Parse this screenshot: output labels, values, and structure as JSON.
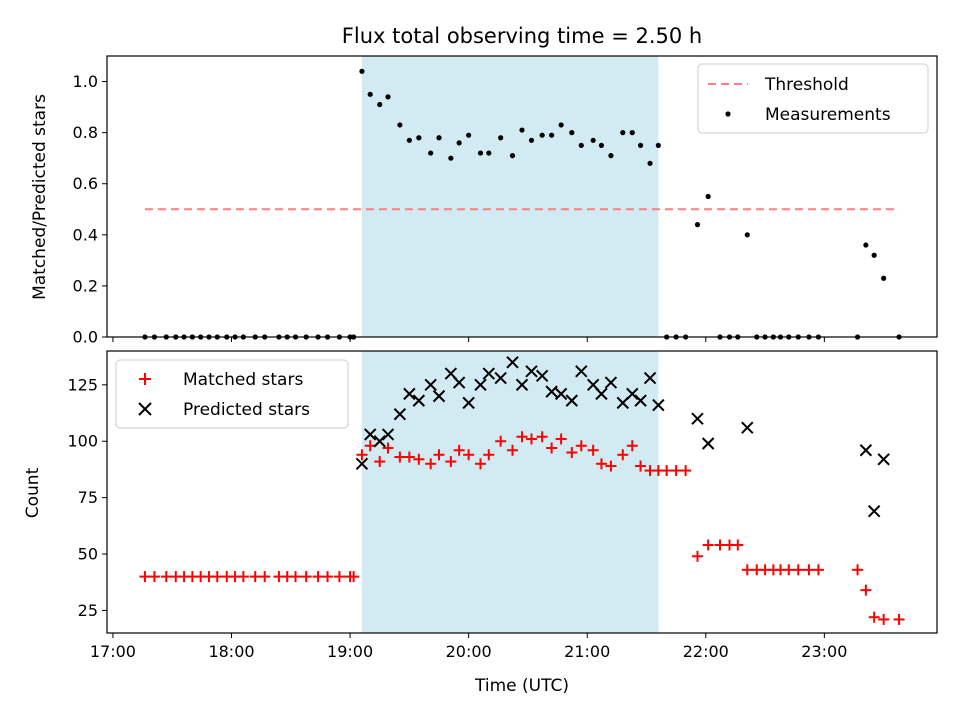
{
  "chart_data": [
    {
      "type": "scatter",
      "title": "Flux total observing time = 2.50 h",
      "xlabel": "",
      "ylabel": "Matched/Predicted stars",
      "xlim": [
        16.95,
        23.95
      ],
      "ylim": [
        0,
        1.1
      ],
      "yticks": [
        "0.0",
        "0.2",
        "0.4",
        "0.6",
        "0.8",
        "1.0"
      ],
      "ytick_values": [
        0,
        0.2,
        0.4,
        0.6,
        0.8,
        1.0
      ],
      "shaded_region": {
        "x_start": 19.1,
        "x_end": 21.6,
        "color": "#add8e6"
      },
      "legend_position": "top-right",
      "series": [
        {
          "name": "Threshold",
          "kind": "dashed-line",
          "color": "#ff7f7f",
          "x": [
            17.27,
            23.63
          ],
          "y": [
            0.5,
            0.5
          ]
        },
        {
          "name": "Measurements",
          "kind": "dot",
          "color": "#000000",
          "x": [
            17.27,
            17.35,
            17.45,
            17.53,
            17.6,
            17.67,
            17.74,
            17.81,
            17.88,
            17.96,
            18.03,
            18.1,
            18.2,
            18.28,
            18.4,
            18.47,
            18.54,
            18.63,
            18.73,
            18.81,
            18.91,
            19.0,
            19.03,
            19.1,
            19.17,
            19.25,
            19.32,
            19.42,
            19.5,
            19.58,
            19.68,
            19.75,
            19.85,
            19.92,
            20.0,
            20.1,
            20.17,
            20.27,
            20.37,
            20.45,
            20.53,
            20.62,
            20.7,
            20.78,
            20.87,
            20.95,
            21.05,
            21.12,
            21.2,
            21.3,
            21.38,
            21.45,
            21.53,
            21.6,
            21.67,
            21.75,
            21.83,
            21.93,
            22.02,
            22.12,
            22.2,
            22.27,
            22.35,
            22.43,
            22.5,
            22.57,
            22.63,
            22.7,
            22.78,
            22.87,
            22.95,
            23.28,
            23.35,
            23.42,
            23.5,
            23.63
          ],
          "y": [
            0,
            0,
            0,
            0,
            0,
            0,
            0,
            0,
            0,
            0,
            0,
            0,
            0,
            0,
            0,
            0,
            0,
            0,
            0,
            0,
            0,
            0,
            0,
            1.04,
            0.95,
            0.91,
            0.94,
            0.83,
            0.77,
            0.78,
            0.72,
            0.78,
            0.7,
            0.76,
            0.79,
            0.72,
            0.72,
            0.78,
            0.71,
            0.81,
            0.77,
            0.79,
            0.79,
            0.83,
            0.8,
            0.75,
            0.77,
            0.75,
            0.71,
            0.8,
            0.8,
            0.75,
            0.68,
            0.75,
            0,
            0,
            0,
            0.44,
            0.55,
            0,
            0,
            0,
            0.4,
            0,
            0,
            0,
            0,
            0,
            0,
            0,
            0,
            0,
            0.36,
            0.32,
            0.23,
            0
          ]
        }
      ]
    },
    {
      "type": "scatter",
      "title": "",
      "xlabel": "Time (UTC)",
      "ylabel": "Count",
      "xlim": [
        16.95,
        23.95
      ],
      "ylim": [
        15,
        140
      ],
      "yticks": [
        "25",
        "50",
        "75",
        "100",
        "125"
      ],
      "ytick_values": [
        25,
        50,
        75,
        100,
        125
      ],
      "xticks": [
        "17:00",
        "18:00",
        "19:00",
        "20:00",
        "21:00",
        "22:00",
        "23:00"
      ],
      "xtick_values": [
        17,
        18,
        19,
        20,
        21,
        22,
        23
      ],
      "shaded_region": {
        "x_start": 19.1,
        "x_end": 21.6,
        "color": "#add8e6"
      },
      "legend_position": "top-left",
      "series": [
        {
          "name": "Matched stars",
          "kind": "plus",
          "color": "#ff0000",
          "x": [
            17.27,
            17.35,
            17.45,
            17.53,
            17.6,
            17.67,
            17.74,
            17.81,
            17.88,
            17.96,
            18.03,
            18.1,
            18.2,
            18.28,
            18.4,
            18.47,
            18.54,
            18.63,
            18.73,
            18.81,
            18.91,
            19.0,
            19.03,
            19.1,
            19.17,
            19.25,
            19.32,
            19.42,
            19.5,
            19.58,
            19.68,
            19.75,
            19.85,
            19.92,
            20.0,
            20.1,
            20.17,
            20.27,
            20.37,
            20.45,
            20.53,
            20.62,
            20.7,
            20.78,
            20.87,
            20.95,
            21.05,
            21.12,
            21.2,
            21.3,
            21.38,
            21.45,
            21.53,
            21.6,
            21.67,
            21.75,
            21.83,
            21.93,
            22.02,
            22.12,
            22.2,
            22.27,
            22.35,
            22.43,
            22.5,
            22.57,
            22.63,
            22.7,
            22.78,
            22.87,
            22.95,
            23.28,
            23.35,
            23.42,
            23.5,
            23.63
          ],
          "y": [
            40,
            40,
            40,
            40,
            40,
            40,
            40,
            40,
            40,
            40,
            40,
            40,
            40,
            40,
            40,
            40,
            40,
            40,
            40,
            40,
            40,
            40,
            40,
            94,
            98,
            91,
            97,
            93,
            93,
            92,
            90,
            94,
            91,
            96,
            94,
            90,
            94,
            100,
            96,
            102,
            101,
            102,
            97,
            101,
            95,
            98,
            96,
            90,
            89,
            94,
            98,
            89,
            87,
            87,
            87,
            87,
            87,
            49,
            54,
            54,
            54,
            54,
            43,
            43,
            43,
            43,
            43,
            43,
            43,
            43,
            43,
            43,
            34,
            22,
            21,
            21
          ]
        },
        {
          "name": "Predicted stars",
          "kind": "cross",
          "color": "#000000",
          "x": [
            19.1,
            19.17,
            19.25,
            19.32,
            19.42,
            19.5,
            19.58,
            19.68,
            19.75,
            19.85,
            19.92,
            20.0,
            20.1,
            20.17,
            20.27,
            20.37,
            20.45,
            20.53,
            20.62,
            20.7,
            20.78,
            20.87,
            20.95,
            21.05,
            21.12,
            21.2,
            21.3,
            21.38,
            21.45,
            21.53,
            21.6,
            21.93,
            22.02,
            22.35,
            23.35,
            23.42,
            23.5
          ],
          "y": [
            90,
            103,
            100,
            103,
            112,
            121,
            118,
            125,
            120,
            130,
            126,
            117,
            125,
            130,
            128,
            135,
            125,
            131,
            129,
            122,
            121,
            118,
            131,
            125,
            121,
            126,
            117,
            121,
            118,
            128,
            116,
            110,
            99,
            106,
            96,
            69,
            92
          ]
        }
      ]
    }
  ]
}
